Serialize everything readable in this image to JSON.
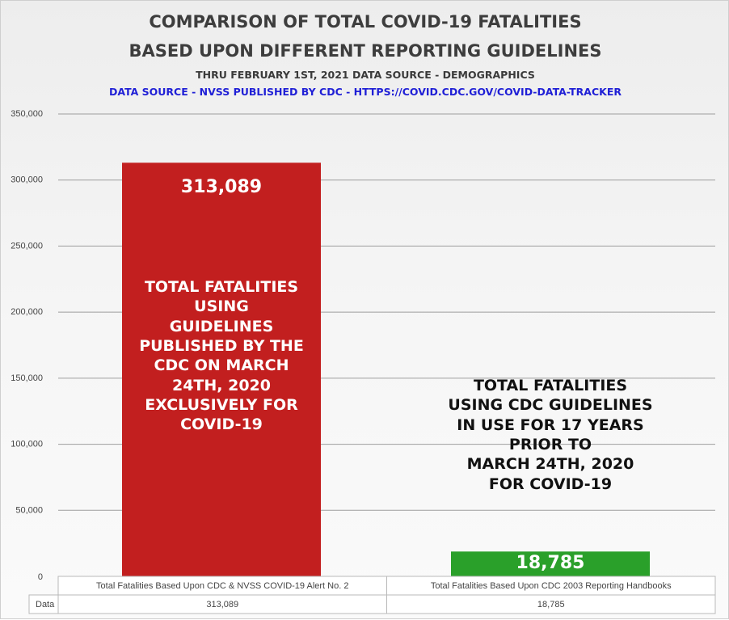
{
  "chart_data": {
    "type": "bar",
    "title": "COMPARISON OF TOTAL COVID-19 FATALITIES",
    "title_line2": "BASED UPON DIFFERENT REPORTING GUIDELINES",
    "subtitle": "THRU FEBRUARY 1ST, 2021 DATA SOURCE   - DEMOGRAPHICS",
    "subtitle2": "DATA SOURCE  - NVSS PUBLISHED BY CDC - HTTPS://COVID.CDC.GOV/COVID-DATA-TRACKER",
    "categories": [
      "Total Fatalities Based Upon CDC & NVSS COVID-19 Alert No. 2",
      "Total Fatalities Based Upon CDC 2003 Reporting Handbooks"
    ],
    "values": [
      313089,
      18785
    ],
    "value_labels": [
      "313,089",
      "18,785"
    ],
    "bar_colors": [
      "#c21f1f",
      "#2aa02a"
    ],
    "ylim": [
      0,
      350000
    ],
    "yticks": [
      "0",
      "50,000",
      "100,000",
      "150,000",
      "200,000",
      "250,000",
      "300,000",
      "350,000"
    ],
    "grid": true,
    "data_table": {
      "row_header": "Data",
      "values": [
        "313,089",
        "18,785"
      ]
    },
    "annotations": {
      "left": [
        "TOTAL FATALITIES",
        "USING",
        "GUIDELINES",
        "PUBLISHED BY THE",
        "CDC ON MARCH",
        "24TH, 2020",
        "EXCLUSIVELY FOR",
        "COVID-19"
      ],
      "right": [
        "TOTAL FATALITIES",
        "USING CDC GUIDELINES",
        "IN USE FOR 17 YEARS",
        "PRIOR TO",
        "MARCH 24TH, 2020",
        "FOR COVID-19"
      ]
    }
  }
}
